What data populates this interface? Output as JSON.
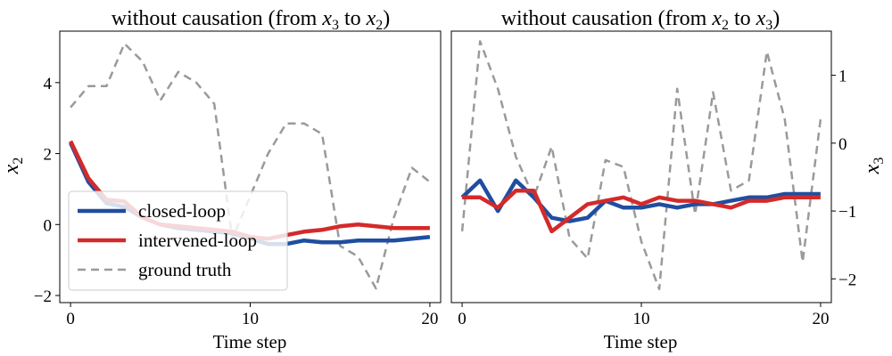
{
  "colors": {
    "closed_loop": "#1f4ea0",
    "intervened_loop": "#d42a2a",
    "ground_truth": "#9a9a9a"
  },
  "chart_data": [
    {
      "type": "line",
      "title_prefix": "without causation (from ",
      "title_var_a": "x",
      "title_sub_a": "3",
      "title_mid": " to ",
      "title_var_b": "x",
      "title_sub_b": "2",
      "title_suffix": ")",
      "xlabel": "Time step",
      "ylabel_var": "x",
      "ylabel_sub": "2",
      "xlim": [
        -0.6,
        20.6
      ],
      "ylim": [
        -2.2,
        5.45
      ],
      "xticks": [
        0,
        10,
        20
      ],
      "yticks": [
        -2,
        0,
        2,
        4
      ],
      "ytick_labels": [
        "−2",
        "0",
        "2",
        "4"
      ],
      "y_axis_side": "left",
      "x": [
        0,
        1,
        2,
        3,
        4,
        5,
        6,
        7,
        8,
        9,
        10,
        11,
        12,
        13,
        14,
        15,
        16,
        17,
        18,
        19,
        20
      ],
      "series": [
        {
          "name": "ground truth",
          "values": [
            3.3,
            3.9,
            3.9,
            5.1,
            4.6,
            3.5,
            4.3,
            4.0,
            3.4,
            -0.4,
            0.8,
            2.0,
            2.85,
            2.85,
            2.55,
            -0.6,
            -0.9,
            -1.8,
            0.2,
            1.6,
            1.2
          ]
        },
        {
          "name": "closed-loop",
          "values": [
            2.3,
            1.2,
            0.6,
            0.5,
            0.2,
            0.0,
            -0.1,
            -0.15,
            -0.2,
            -0.25,
            -0.4,
            -0.55,
            -0.55,
            -0.45,
            -0.5,
            -0.5,
            -0.45,
            -0.45,
            -0.45,
            -0.4,
            -0.35
          ]
        },
        {
          "name": "intervened-loop",
          "values": [
            2.35,
            1.3,
            0.7,
            0.65,
            0.2,
            0.0,
            -0.05,
            -0.1,
            -0.15,
            -0.2,
            -0.35,
            -0.4,
            -0.3,
            -0.2,
            -0.15,
            -0.05,
            0.0,
            -0.05,
            -0.1,
            -0.1,
            -0.1
          ]
        }
      ],
      "legend": {
        "placement": "lower-left",
        "entries": [
          "closed-loop",
          "intervened-loop",
          "ground truth"
        ]
      }
    },
    {
      "type": "line",
      "title_prefix": "without causation (from ",
      "title_var_a": "x",
      "title_sub_a": "2",
      "title_mid": " to ",
      "title_var_b": "x",
      "title_sub_b": "3",
      "title_suffix": ")",
      "xlabel": "Time step",
      "ylabel_var": "x",
      "ylabel_sub": "3",
      "xlim": [
        -0.6,
        20.6
      ],
      "ylim": [
        -2.35,
        1.65
      ],
      "xticks": [
        0,
        10,
        20
      ],
      "yticks": [
        -2,
        -1,
        0,
        1
      ],
      "ytick_labels": [
        "−2",
        "−1",
        "0",
        "1"
      ],
      "y_axis_side": "right",
      "x": [
        0,
        1,
        2,
        3,
        4,
        5,
        6,
        7,
        8,
        9,
        10,
        11,
        12,
        13,
        14,
        15,
        16,
        17,
        18,
        19,
        20
      ],
      "series": [
        {
          "name": "ground truth",
          "values": [
            -1.3,
            1.5,
            0.8,
            -0.2,
            -0.8,
            -0.05,
            -1.4,
            -1.7,
            -0.25,
            -0.35,
            -1.45,
            -2.15,
            0.8,
            -1.05,
            0.75,
            -0.7,
            -0.55,
            1.35,
            0.35,
            -1.75,
            0.35
          ]
        },
        {
          "name": "closed-loop",
          "values": [
            -0.8,
            -0.55,
            -1.0,
            -0.55,
            -0.8,
            -1.1,
            -1.15,
            -1.1,
            -0.85,
            -0.95,
            -0.95,
            -0.9,
            -0.95,
            -0.9,
            -0.9,
            -0.85,
            -0.8,
            -0.8,
            -0.75,
            -0.75,
            -0.75
          ]
        },
        {
          "name": "intervened-loop",
          "values": [
            -0.8,
            -0.8,
            -0.95,
            -0.7,
            -0.7,
            -1.3,
            -1.1,
            -0.9,
            -0.85,
            -0.8,
            -0.9,
            -0.8,
            -0.85,
            -0.85,
            -0.9,
            -0.95,
            -0.85,
            -0.85,
            -0.8,
            -0.8,
            -0.8
          ]
        }
      ]
    }
  ]
}
